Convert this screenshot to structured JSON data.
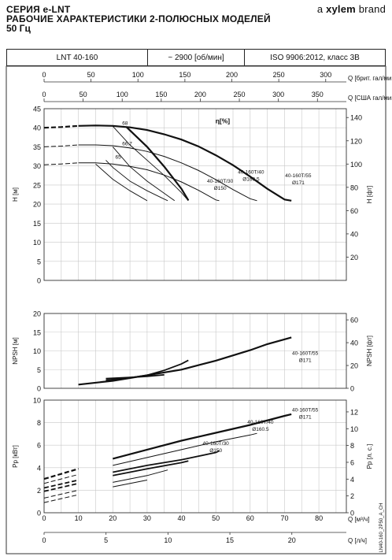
{
  "header": {
    "series_title": "СЕРИЯ e-LNT",
    "subtitle_line1": "РАБОЧИЕ ХАРАКТЕРИСТИКИ 2-ПОЛЮСНЫХ МОДЕЛЕЙ",
    "subtitle_line2": "50 Гц",
    "brand_prefix": "a ",
    "brand_name": "xylem",
    "brand_suffix": " brand"
  },
  "info": {
    "model": "LNT 40-160",
    "speed": "~ 2900 [об/мин]",
    "standard": "ISO 9906:2012, класс 3B"
  },
  "colors": {
    "curve": "#111111",
    "grid": "#c8c8c8",
    "frame": "#333333"
  },
  "footer_code": "LN40-160_2P50_A_CH",
  "chart_data": [
    {
      "type": "line",
      "panel": "head",
      "top_axes": [
        {
          "label": "Q [брит. гал/мин]",
          "ticks": [
            0,
            50,
            100,
            150,
            200,
            250,
            300
          ],
          "range": [
            0,
            322
          ]
        },
        {
          "label": "Q [США гал/мин]",
          "ticks": [
            0,
            50,
            100,
            150,
            200,
            250,
            300,
            350
          ],
          "range": [
            0,
            387
          ]
        }
      ],
      "xlim": [
        0,
        88
      ],
      "ylabel": "H [м]",
      "ylim": [
        0,
        45
      ],
      "yticks": [
        0,
        5,
        10,
        15,
        20,
        25,
        30,
        35,
        40,
        45
      ],
      "y2label": "H [фт]",
      "y2lim": [
        0,
        147.6
      ],
      "y2ticks": [
        20,
        40,
        60,
        80,
        100,
        120,
        140
      ],
      "efficiency_label": "η[%]",
      "series": [
        {
          "name": "40-160T/55\nØ171",
          "x": [
            0,
            5,
            10,
            15,
            20,
            25,
            30,
            35,
            40,
            45,
            50,
            55,
            60,
            65,
            70,
            72
          ],
          "y": [
            40.0,
            40.2,
            40.5,
            40.6,
            40.5,
            40.1,
            39.4,
            38.3,
            36.9,
            35.1,
            32.8,
            30.2,
            27.2,
            24.0,
            21.2,
            20.9
          ]
        },
        {
          "name": "40-160T/40\nØ160.5",
          "x": [
            0,
            5,
            10,
            15,
            20,
            25,
            30,
            35,
            40,
            45,
            50,
            55,
            60,
            62
          ],
          "y": [
            35.0,
            35.2,
            35.5,
            35.5,
            35.3,
            34.7,
            33.8,
            32.5,
            30.8,
            28.8,
            26.4,
            23.8,
            21.4,
            20.9
          ]
        },
        {
          "name": "40-160T/30\nØ150",
          "x": [
            0,
            5,
            10,
            15,
            20,
            25,
            30,
            35,
            40,
            45,
            50,
            51
          ],
          "y": [
            30.3,
            30.5,
            30.8,
            30.8,
            30.5,
            29.9,
            29.0,
            27.6,
            25.8,
            23.6,
            21.1,
            20.9
          ]
        }
      ],
      "dashed_until_x": 10,
      "iso_efficiency": [
        {
          "label": "68",
          "x": [
            20,
            25,
            30,
            35,
            40,
            42
          ],
          "y": [
            40.4,
            35.5,
            31.5,
            27.5,
            23.0,
            20.9
          ]
        },
        {
          "label": "66.7",
          "x": [
            20,
            25,
            30,
            35,
            38
          ],
          "y": [
            35.0,
            29.8,
            26.0,
            22.8,
            20.9
          ]
        },
        {
          "label": "65",
          "x": [
            18,
            20,
            25,
            30,
            35,
            36
          ],
          "y": [
            31.5,
            29.6,
            26.0,
            23.5,
            21.3,
            20.9
          ]
        },
        {
          "label": "",
          "x": [
            15,
            20,
            25,
            30
          ],
          "y": [
            30.5,
            26.5,
            23.5,
            20.9
          ]
        }
      ],
      "max_efficiency_line": {
        "x": [
          24,
          30,
          35,
          40,
          42
        ],
        "y": [
          40.2,
          35.0,
          29.8,
          24.0,
          21.0
        ]
      }
    },
    {
      "type": "line",
      "panel": "npsh",
      "xlim": [
        0,
        88
      ],
      "ylabel": "NPSH [м]",
      "ylim": [
        0,
        20
      ],
      "yticks": [
        0,
        5,
        10,
        15,
        20
      ],
      "y2label": "NPSH [фт]",
      "y2lim": [
        0,
        65.6
      ],
      "y2ticks": [
        0,
        20,
        40,
        60
      ],
      "series": [
        {
          "name": "40-160T/55\nØ171",
          "x": [
            10,
            20,
            30,
            40,
            50,
            60,
            65,
            72
          ],
          "y": [
            1.0,
            2.0,
            3.5,
            5.0,
            7.4,
            10.2,
            11.8,
            13.6
          ]
        },
        {
          "name": "40-160T/40\nØ160.5",
          "x": [
            18,
            25,
            30,
            35
          ],
          "y": [
            2.6,
            2.9,
            3.2,
            3.6
          ]
        },
        {
          "name": "40-160T/30\nØ150",
          "x": [
            18,
            25,
            30,
            35,
            40,
            42
          ],
          "y": [
            2.2,
            2.8,
            3.5,
            4.8,
            6.5,
            7.5
          ]
        }
      ]
    },
    {
      "type": "line",
      "panel": "power",
      "xlabel": "Q [м³/ч]",
      "xlim": [
        0,
        88
      ],
      "xticks": [
        0,
        10,
        20,
        30,
        40,
        50,
        60,
        70,
        80
      ],
      "x2label": "Q [л/ч]",
      "x2lim": [
        0,
        24.4
      ],
      "x2ticks": [
        0,
        5,
        10,
        15,
        20
      ],
      "ylabel": "Pp [кВт]",
      "ylim": [
        0,
        10
      ],
      "yticks": [
        0,
        2,
        4,
        6,
        8,
        10
      ],
      "y2label": "Pp [л. с.]",
      "y2lim": [
        0,
        13.4
      ],
      "y2ticks": [
        0,
        2,
        4,
        6,
        8,
        10,
        12
      ],
      "dashed_until_x": 18,
      "series": [
        {
          "name": "40-160T/55\nØ171",
          "x": [
            0,
            10,
            20,
            30,
            40,
            50,
            60,
            70,
            72
          ],
          "y": [
            3.0,
            3.9,
            4.8,
            5.6,
            6.4,
            7.1,
            7.8,
            8.6,
            8.75
          ]
        },
        {
          "name": "",
          "x": [
            0,
            10,
            20,
            30,
            40,
            50,
            60,
            62
          ],
          "y": [
            2.6,
            3.4,
            4.2,
            4.9,
            5.6,
            6.3,
            6.9,
            7.05
          ]
        },
        {
          "name": "40-160T/40\nØ160.5",
          "x": [
            0,
            10,
            20,
            30,
            40,
            50,
            51
          ],
          "y": [
            2.2,
            2.9,
            3.6,
            4.2,
            4.7,
            5.35,
            5.5
          ]
        },
        {
          "name": "40-160T/30\nØ150",
          "x": [
            0,
            10,
            20,
            30,
            40,
            42
          ],
          "y": [
            1.9,
            2.6,
            3.3,
            3.9,
            4.45,
            4.6
          ]
        },
        {
          "name": "",
          "x": [
            0,
            10,
            20,
            30,
            36
          ],
          "y": [
            1.3,
            2.0,
            2.7,
            3.3,
            3.8
          ]
        },
        {
          "name": "",
          "x": [
            0,
            10,
            20,
            30
          ],
          "y": [
            0.9,
            1.6,
            2.3,
            2.9
          ]
        }
      ]
    }
  ]
}
